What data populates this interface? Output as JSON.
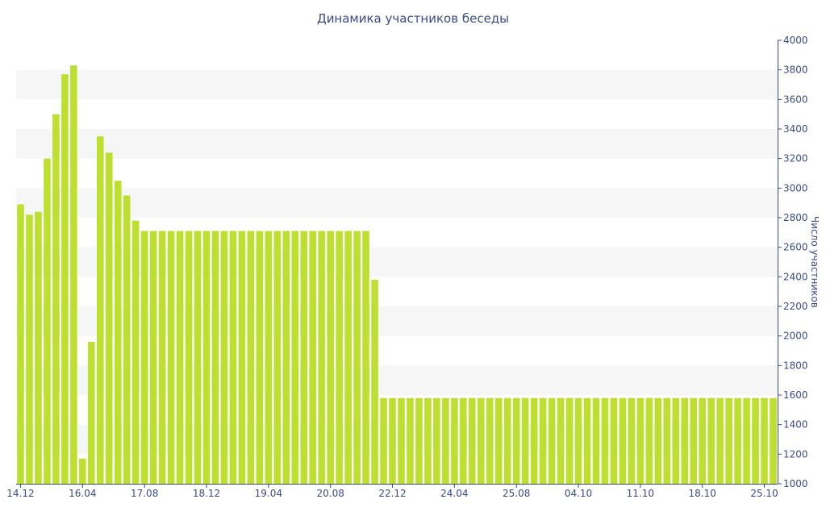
{
  "chart_data": {
    "type": "bar",
    "title": "Динамика участников беседы",
    "ylabel": "Число участников",
    "xlabel": "",
    "y_axis_side": "right",
    "ylim": [
      1000,
      4000
    ],
    "y_ticks": [
      1000,
      1200,
      1400,
      1600,
      1800,
      2000,
      2200,
      2400,
      2600,
      2800,
      3000,
      3200,
      3400,
      3600,
      3800,
      4000
    ],
    "x_tick_labels": [
      {
        "index": 0,
        "label": "14.12"
      },
      {
        "index": 7,
        "label": "16.04"
      },
      {
        "index": 14,
        "label": "17.08"
      },
      {
        "index": 21,
        "label": "18.12"
      },
      {
        "index": 28,
        "label": "19.04"
      },
      {
        "index": 35,
        "label": "20.08"
      },
      {
        "index": 42,
        "label": "22.12"
      },
      {
        "index": 49,
        "label": "24.04"
      },
      {
        "index": 56,
        "label": "25.08"
      },
      {
        "index": 63,
        "label": "04.10"
      },
      {
        "index": 70,
        "label": "11.10"
      },
      {
        "index": 77,
        "label": "18.10"
      },
      {
        "index": 84,
        "label": "25.10"
      }
    ],
    "values": [
      2890,
      2820,
      2840,
      3200,
      3500,
      3770,
      3830,
      1170,
      1960,
      3350,
      3240,
      3050,
      2950,
      2780,
      2710,
      2710,
      2710,
      2710,
      2710,
      2710,
      2710,
      2710,
      2710,
      2710,
      2710,
      2710,
      2710,
      2710,
      2710,
      2710,
      2710,
      2710,
      2710,
      2710,
      2710,
      2710,
      2710,
      2710,
      2710,
      2710,
      2380,
      1580,
      1580,
      1580,
      1580,
      1580,
      1580,
      1580,
      1580,
      1580,
      1580,
      1580,
      1580,
      1580,
      1580,
      1580,
      1580,
      1580,
      1580,
      1580,
      1580,
      1580,
      1580,
      1580,
      1580,
      1580,
      1580,
      1580,
      1580,
      1580,
      1580,
      1580,
      1580,
      1580,
      1580,
      1580,
      1580,
      1580,
      1580,
      1580,
      1580,
      1580,
      1580,
      1580,
      1580,
      1580
    ],
    "colors": {
      "bar": "#bddf2f",
      "band": "#f6f6f6",
      "axis": "#3b4a8c",
      "text": "#3b4a8c"
    },
    "grid": "alternating-bands"
  }
}
